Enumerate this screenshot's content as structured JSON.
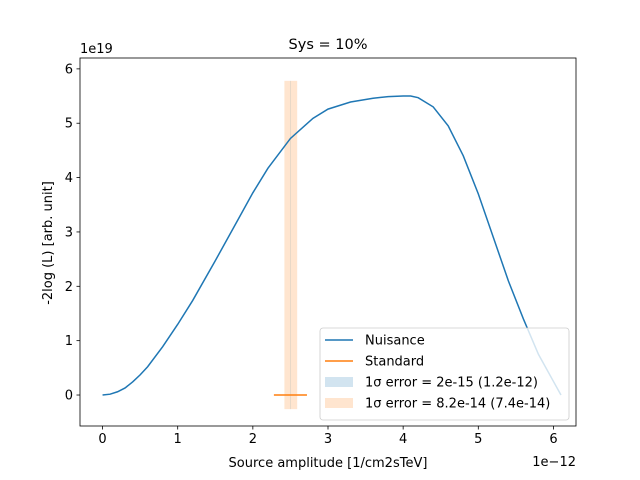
{
  "chart_data": {
    "type": "line",
    "title": "Sys = 10%",
    "xlabel": "Source amplitude [1/cm2sTeV]",
    "ylabel": "-2log (L) [arb. unit]",
    "x_offset_text": "1e−12",
    "y_offset_text": "1e19",
    "xlim": [
      -0.3,
      6.3
    ],
    "ylim": [
      -0.57,
      6.2
    ],
    "xticks": [
      0,
      1,
      2,
      3,
      4,
      5,
      6
    ],
    "yticks": [
      0,
      1,
      2,
      3,
      4,
      5,
      6
    ],
    "grid": false,
    "legend_position": "lower-right",
    "series": [
      {
        "name": "Nuisance",
        "color": "#1f77b4",
        "x": [
          0.0,
          0.1,
          0.2,
          0.3,
          0.4,
          0.5,
          0.6,
          0.8,
          1.0,
          1.2,
          1.5,
          1.8,
          2.0,
          2.2,
          2.5,
          2.8,
          3.0,
          3.3,
          3.6,
          3.8,
          4.0,
          4.1,
          4.2,
          4.4,
          4.6,
          4.8,
          5.0,
          5.2,
          5.4,
          5.6,
          5.8,
          6.0,
          6.1
        ],
        "y": [
          0.0,
          0.015,
          0.06,
          0.13,
          0.24,
          0.37,
          0.52,
          0.89,
          1.3,
          1.74,
          2.47,
          3.22,
          3.72,
          4.17,
          4.72,
          5.09,
          5.26,
          5.39,
          5.46,
          5.49,
          5.5,
          5.5,
          5.47,
          5.3,
          4.95,
          4.4,
          3.7,
          2.9,
          2.1,
          1.4,
          0.75,
          0.25,
          0.0
        ]
      },
      {
        "name": "Standard",
        "color": "#ff7f0e",
        "x": [
          2.28,
          2.72
        ],
        "y": [
          0.0,
          0.0
        ]
      }
    ],
    "error_bands": [
      {
        "label": "1$\\sigma$ error = 2e-15 (1.2e-12)",
        "legend_text": "1σ error = 2e-15 (1.2e-12)",
        "color": "#1f77b4",
        "opacity": 0.2,
        "x_min": 2.499,
        "x_max": 2.501
      },
      {
        "label": "1$\\sigma$ error = 8.2e-14 (7.4e-14)",
        "legend_text": "1σ error = 8.2e-14 (7.4e-14)",
        "color": "#ff7f0e",
        "opacity": 0.2,
        "x_min": 2.42,
        "x_max": 2.59
      }
    ],
    "band_y": [
      -0.26,
      5.78
    ],
    "legend": [
      {
        "type": "line",
        "text": "Nuisance",
        "color": "#1f77b4"
      },
      {
        "type": "line",
        "text": "Standard",
        "color": "#ff7f0e"
      },
      {
        "type": "patch",
        "text": "1σ error = 2e-15 (1.2e-12)",
        "color": "#1f77b4",
        "opacity": 0.2
      },
      {
        "type": "patch",
        "text": "1σ error = 8.2e-14 (7.4e-14)",
        "color": "#ff7f0e",
        "opacity": 0.2
      }
    ]
  }
}
